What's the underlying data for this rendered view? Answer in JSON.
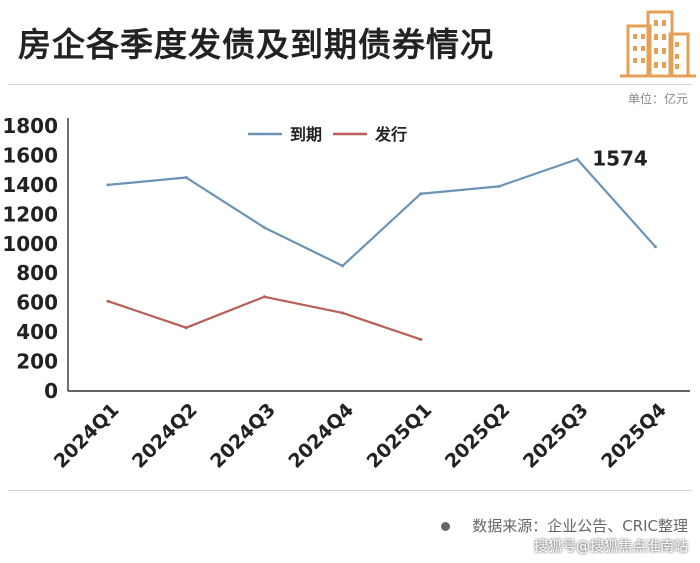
{
  "header": {
    "title": "房企各季度发债及到期债券情况"
  },
  "unit_label": "单位：亿元",
  "source_text": "数据来源：企业公告、CRIC整理",
  "watermark_text": "搜狐号@搜狐焦点淮南站",
  "colors": {
    "maturity": "#6b93b5",
    "issuance": "#b85f57",
    "logo": "#e3a056",
    "axis": "#333333"
  },
  "chart_data": {
    "type": "line",
    "title": "房企各季度发债及到期债券情况",
    "categories": [
      "2024Q1",
      "2024Q2",
      "2024Q3",
      "2024Q4",
      "2025Q1",
      "2025Q2",
      "2025Q3",
      "2025Q4"
    ],
    "series": [
      {
        "name": "到期",
        "values": [
          1400,
          1450,
          1110,
          850,
          1340,
          1390,
          1574,
          980
        ]
      },
      {
        "name": "发行",
        "values": [
          610,
          430,
          640,
          530,
          350,
          null,
          null,
          null
        ]
      }
    ],
    "xlabel": "",
    "ylabel": "",
    "ylim": [
      0,
      1800
    ],
    "yticks": [
      0,
      200,
      400,
      600,
      800,
      1000,
      1200,
      1400,
      1600,
      1800
    ],
    "annotations": [
      {
        "series": "到期",
        "category": "2025Q3",
        "text": "1574"
      }
    ],
    "legend_position": "top-center",
    "grid": false
  }
}
